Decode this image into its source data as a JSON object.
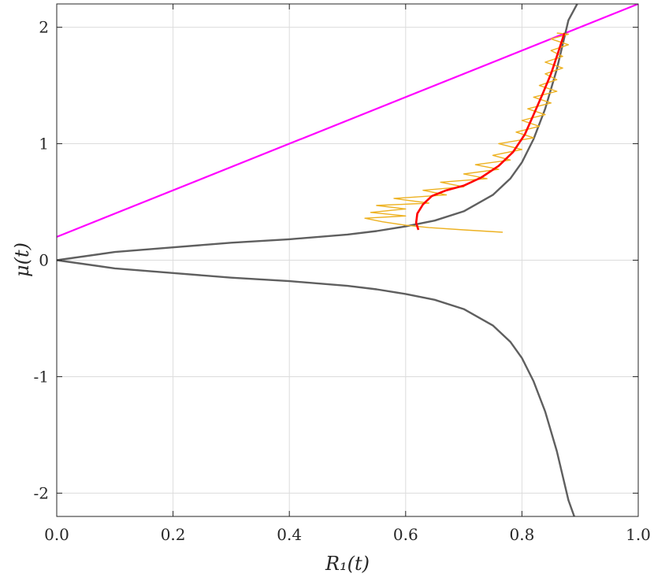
{
  "chart_data": {
    "type": "line",
    "xlabel": "R₁(t)",
    "ylabel": "μ(t)",
    "xlim": [
      0.0,
      1.0
    ],
    "ylim": [
      -2.2,
      2.2
    ],
    "grid": true,
    "x_ticks": [
      0.0,
      0.2,
      0.4,
      0.6,
      0.8,
      1.0
    ],
    "x_tick_labels": [
      "0.0",
      "0.2",
      "0.4",
      "0.6",
      "0.8",
      "1.0"
    ],
    "y_ticks": [
      -2,
      -1,
      0,
      1,
      2
    ],
    "y_tick_labels": [
      "-2",
      "-1",
      "0",
      "1",
      "2"
    ],
    "series": [
      {
        "color": "#ff00ff",
        "points": [
          [
            0.0,
            0.2
          ],
          [
            1.0,
            2.2
          ]
        ]
      },
      {
        "color": "#5f5f5f",
        "points": [
          [
            0.0,
            0.0
          ],
          [
            0.1,
            0.07
          ],
          [
            0.2,
            0.11
          ],
          [
            0.3,
            0.15
          ],
          [
            0.4,
            0.18
          ],
          [
            0.5,
            0.22
          ],
          [
            0.55,
            0.25
          ],
          [
            0.6,
            0.29
          ],
          [
            0.65,
            0.34
          ],
          [
            0.7,
            0.42
          ],
          [
            0.75,
            0.56
          ],
          [
            0.78,
            0.7
          ],
          [
            0.8,
            0.84
          ],
          [
            0.82,
            1.04
          ],
          [
            0.84,
            1.3
          ],
          [
            0.86,
            1.64
          ],
          [
            0.88,
            2.06
          ],
          [
            0.895,
            2.2
          ]
        ]
      },
      {
        "color": "#5f5f5f",
        "points": [
          [
            0.0,
            0.0
          ],
          [
            0.1,
            -0.07
          ],
          [
            0.2,
            -0.11
          ],
          [
            0.3,
            -0.15
          ],
          [
            0.4,
            -0.18
          ],
          [
            0.5,
            -0.22
          ],
          [
            0.55,
            -0.25
          ],
          [
            0.6,
            -0.29
          ],
          [
            0.65,
            -0.34
          ],
          [
            0.7,
            -0.42
          ],
          [
            0.75,
            -0.56
          ],
          [
            0.78,
            -0.7
          ],
          [
            0.8,
            -0.84
          ],
          [
            0.82,
            -1.04
          ],
          [
            0.84,
            -1.3
          ],
          [
            0.86,
            -1.64
          ],
          [
            0.88,
            -2.06
          ],
          [
            0.89,
            -2.2
          ]
        ]
      },
      {
        "color": "#edb120",
        "points": [
          [
            0.767,
            0.24
          ],
          [
            0.7,
            0.26
          ],
          [
            0.64,
            0.28
          ],
          [
            0.6,
            0.3
          ],
          [
            0.56,
            0.33
          ],
          [
            0.53,
            0.36
          ],
          [
            0.6,
            0.38
          ],
          [
            0.54,
            0.41
          ],
          [
            0.6,
            0.44
          ],
          [
            0.55,
            0.47
          ],
          [
            0.64,
            0.49
          ],
          [
            0.58,
            0.53
          ],
          [
            0.67,
            0.56
          ],
          [
            0.63,
            0.6
          ],
          [
            0.7,
            0.63
          ],
          [
            0.66,
            0.67
          ],
          [
            0.74,
            0.7
          ],
          [
            0.7,
            0.74
          ],
          [
            0.76,
            0.78
          ],
          [
            0.72,
            0.82
          ],
          [
            0.78,
            0.86
          ],
          [
            0.75,
            0.9
          ],
          [
            0.8,
            0.95
          ],
          [
            0.76,
            1.0
          ],
          [
            0.82,
            1.05
          ],
          [
            0.79,
            1.1
          ],
          [
            0.83,
            1.15
          ],
          [
            0.8,
            1.2
          ],
          [
            0.84,
            1.25
          ],
          [
            0.81,
            1.3
          ],
          [
            0.85,
            1.35
          ],
          [
            0.82,
            1.4
          ],
          [
            0.86,
            1.45
          ],
          [
            0.83,
            1.5
          ],
          [
            0.86,
            1.55
          ],
          [
            0.84,
            1.6
          ],
          [
            0.87,
            1.65
          ],
          [
            0.84,
            1.7
          ],
          [
            0.87,
            1.75
          ],
          [
            0.85,
            1.8
          ],
          [
            0.88,
            1.85
          ],
          [
            0.85,
            1.9
          ],
          [
            0.88,
            1.94
          ],
          [
            0.86,
            1.95
          ]
        ]
      },
      {
        "color": "#ff0000",
        "points": [
          [
            0.622,
            0.26
          ],
          [
            0.618,
            0.32
          ],
          [
            0.62,
            0.4
          ],
          [
            0.63,
            0.48
          ],
          [
            0.645,
            0.55
          ],
          [
            0.67,
            0.6
          ],
          [
            0.7,
            0.64
          ],
          [
            0.73,
            0.71
          ],
          [
            0.76,
            0.81
          ],
          [
            0.785,
            0.93
          ],
          [
            0.805,
            1.08
          ],
          [
            0.82,
            1.25
          ],
          [
            0.835,
            1.42
          ],
          [
            0.85,
            1.6
          ],
          [
            0.862,
            1.78
          ],
          [
            0.873,
            1.95
          ]
        ]
      }
    ]
  }
}
